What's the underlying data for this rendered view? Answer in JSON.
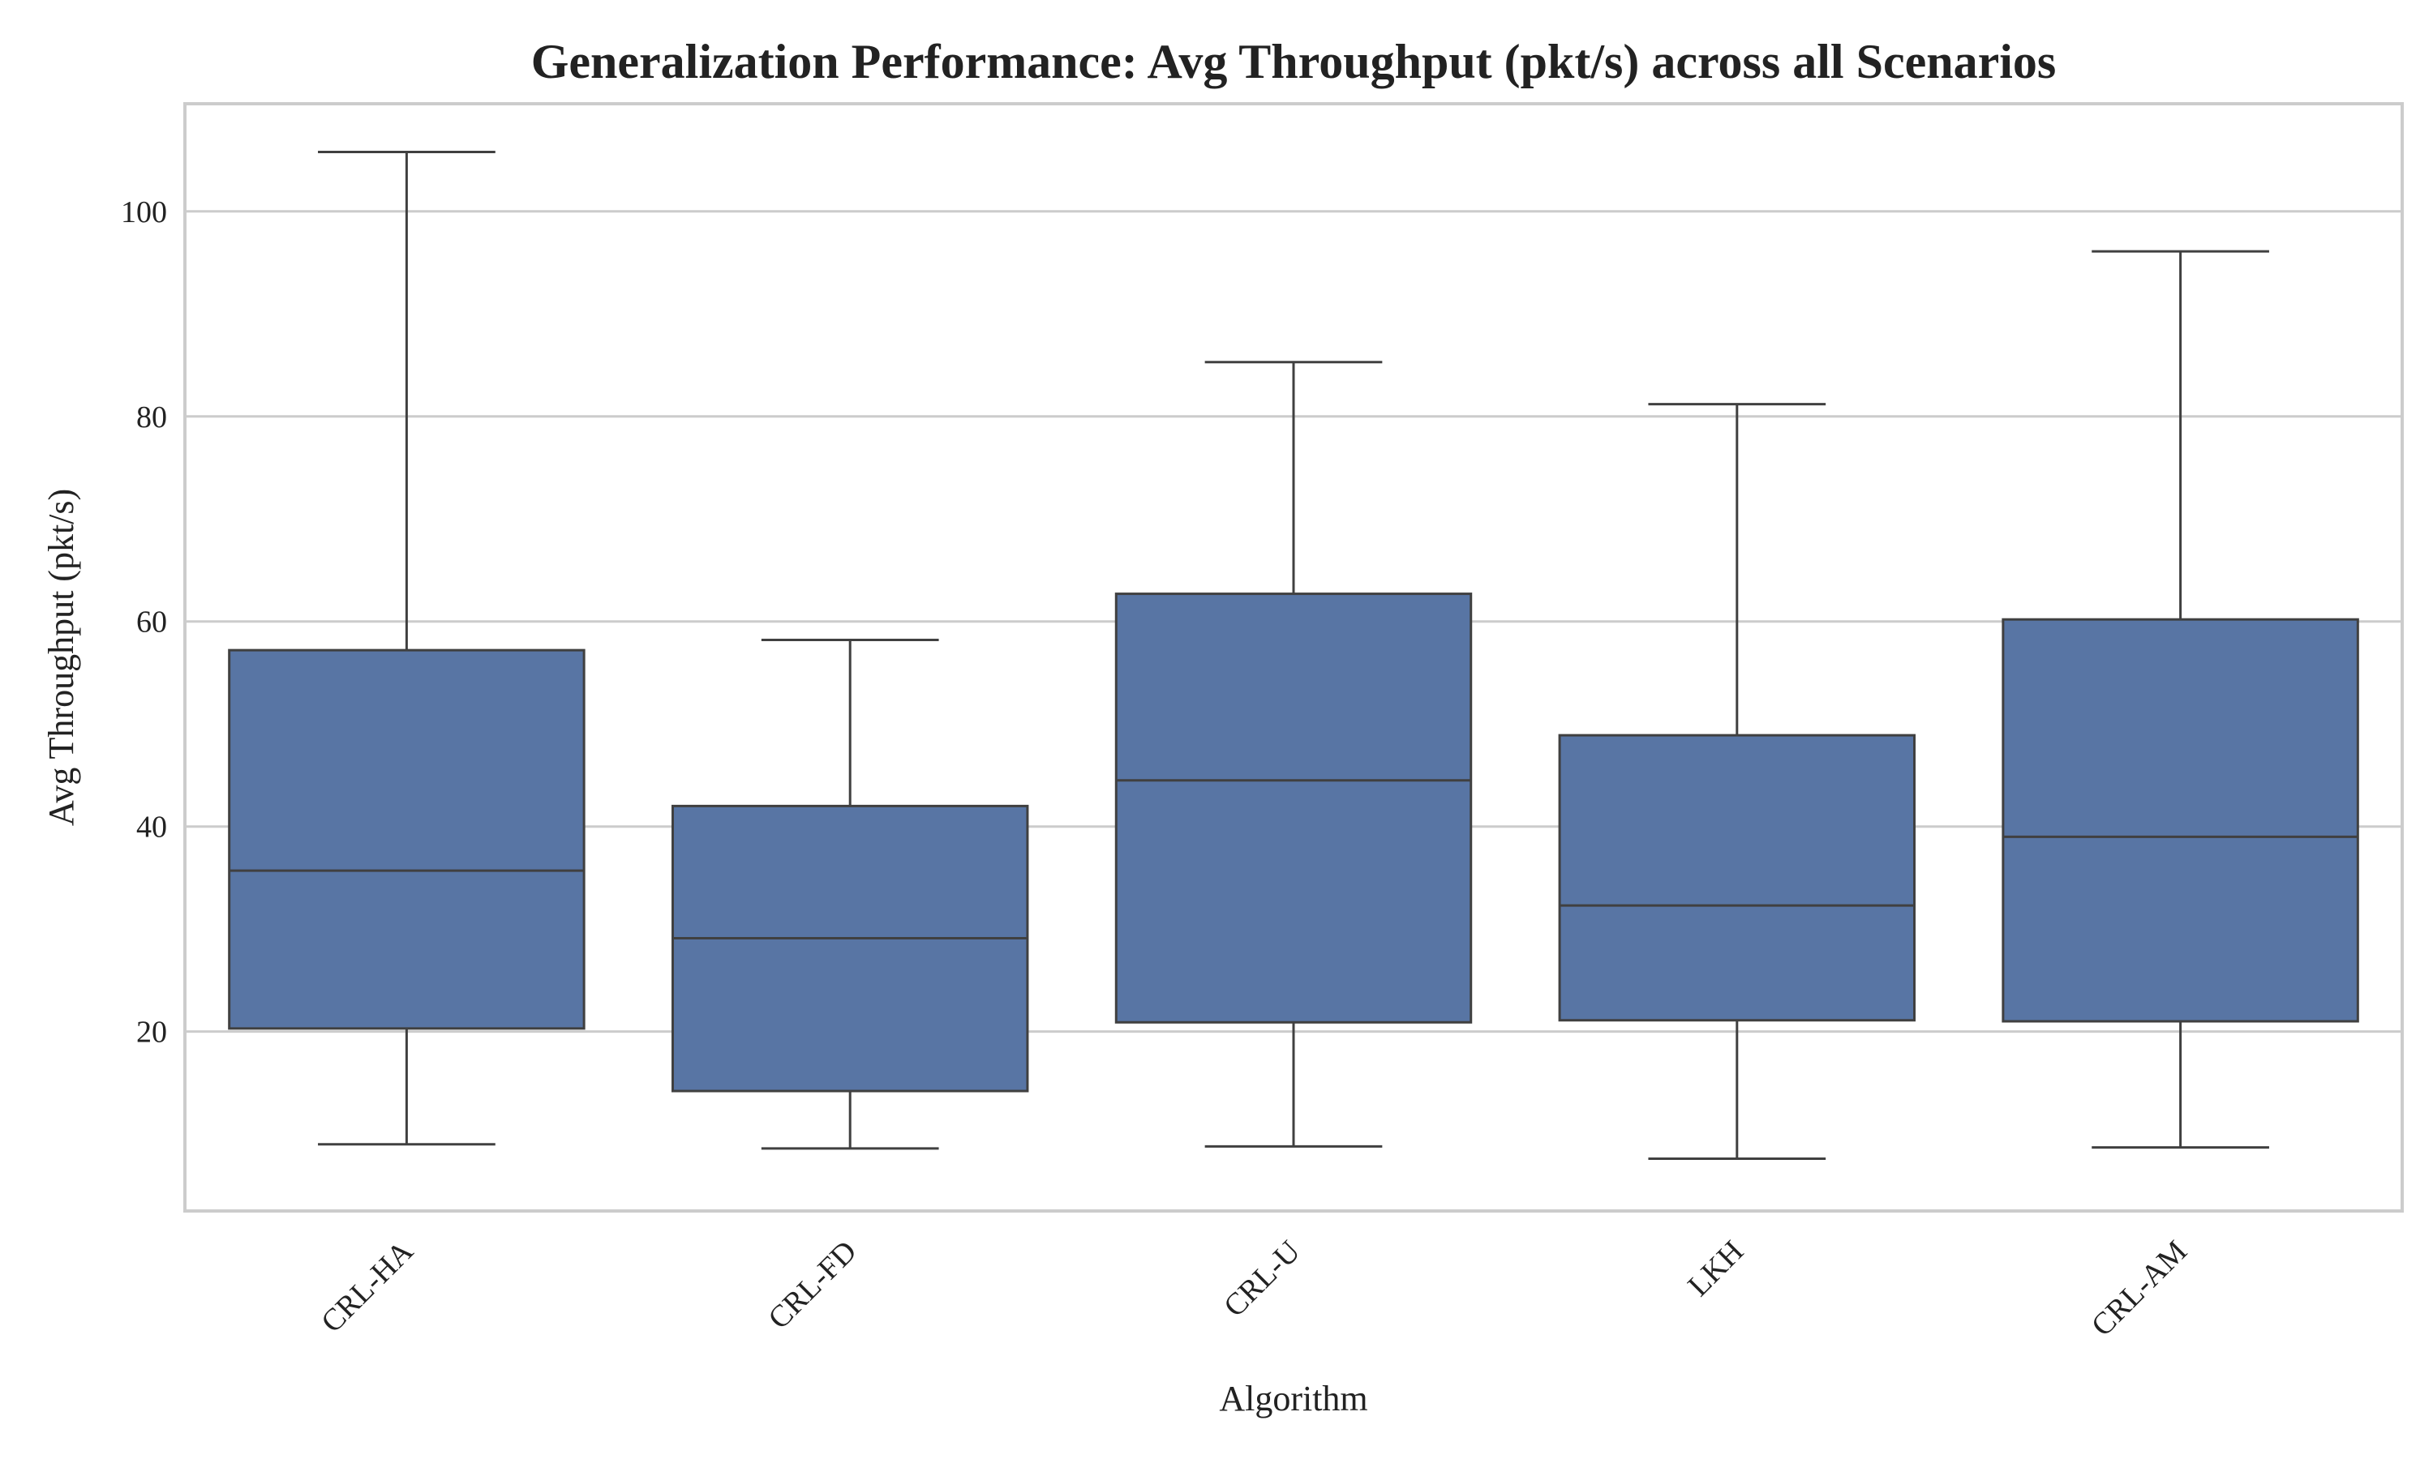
{
  "chart_data": {
    "type": "box",
    "title": "Generalization Performance: Avg Throughput (pkt/s) across all Scenarios",
    "xlabel": "Algorithm",
    "ylabel": "Avg Throughput (pkt/s)",
    "ylim": [
      2.5,
      110.5
    ],
    "yticks": [
      20,
      40,
      60,
      80,
      100
    ],
    "grid": true,
    "legend": "none",
    "colors": {
      "box_fill": "#5875a4",
      "box_edge": "#404040",
      "grid": "#cccccc",
      "frame": "#cccccc"
    },
    "categories": [
      "CRL-HA",
      "CRL-FD",
      "CRL-U",
      "LKH",
      "CRL-AM"
    ],
    "boxes": [
      {
        "category": "CRL-HA",
        "whisker_low": 9.0,
        "q1": 20.3,
        "median": 35.7,
        "q3": 57.2,
        "whisker_high": 105.8
      },
      {
        "category": "CRL-FD",
        "whisker_low": 8.6,
        "q1": 14.2,
        "median": 29.1,
        "q3": 42.0,
        "whisker_high": 58.2
      },
      {
        "category": "CRL-U",
        "whisker_low": 8.8,
        "q1": 20.9,
        "median": 44.5,
        "q3": 62.7,
        "whisker_high": 85.3
      },
      {
        "category": "LKH",
        "whisker_low": 7.6,
        "q1": 21.1,
        "median": 32.3,
        "q3": 48.9,
        "whisker_high": 81.2
      },
      {
        "category": "CRL-AM",
        "whisker_low": 8.7,
        "q1": 21.0,
        "median": 39.0,
        "q3": 60.2,
        "whisker_high": 96.1
      }
    ]
  }
}
